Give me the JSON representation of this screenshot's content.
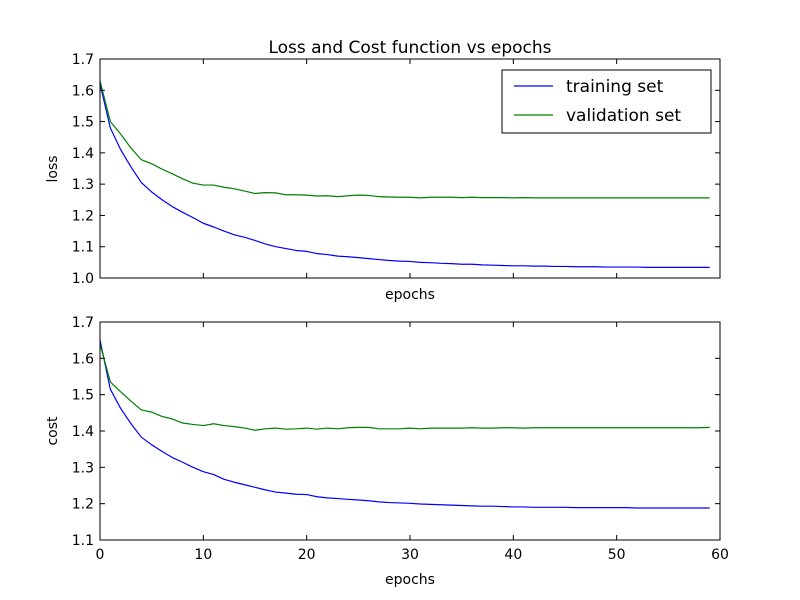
{
  "chart_data": [
    {
      "type": "line",
      "title": "Loss and Cost function vs epochs",
      "xlabel": "epochs",
      "ylabel": "loss",
      "xlim": [
        0,
        60
      ],
      "ylim": [
        1.0,
        1.7
      ],
      "yticks": [
        "1.0",
        "1.1",
        "1.2",
        "1.3",
        "1.4",
        "1.5",
        "1.6",
        "1.7"
      ],
      "xticks_labeled": false,
      "legend": {
        "position": "top-right"
      },
      "series": [
        {
          "name": "training set",
          "color": "#0000ff",
          "x": [
            0,
            1,
            2,
            3,
            4,
            5,
            6,
            7,
            8,
            9,
            10,
            11,
            12,
            13,
            14,
            15,
            16,
            17,
            18,
            19,
            20,
            21,
            22,
            23,
            24,
            25,
            26,
            27,
            28,
            29,
            30,
            31,
            32,
            33,
            34,
            35,
            36,
            37,
            38,
            39,
            40,
            41,
            42,
            43,
            44,
            45,
            46,
            47,
            48,
            49,
            50,
            51,
            52,
            53,
            54,
            55,
            56,
            57,
            58,
            59
          ],
          "values": [
            1.62,
            1.48,
            1.41,
            1.355,
            1.305,
            1.275,
            1.25,
            1.228,
            1.21,
            1.193,
            1.175,
            1.163,
            1.15,
            1.138,
            1.13,
            1.12,
            1.109,
            1.1,
            1.094,
            1.088,
            1.085,
            1.078,
            1.075,
            1.07,
            1.068,
            1.065,
            1.062,
            1.059,
            1.056,
            1.054,
            1.053,
            1.05,
            1.049,
            1.047,
            1.046,
            1.044,
            1.044,
            1.042,
            1.041,
            1.04,
            1.039,
            1.039,
            1.038,
            1.038,
            1.037,
            1.037,
            1.036,
            1.036,
            1.036,
            1.035,
            1.035,
            1.035,
            1.035,
            1.034,
            1.034,
            1.034,
            1.034,
            1.034,
            1.034,
            1.034
          ]
        },
        {
          "name": "validation set",
          "color": "#008000",
          "x": [
            0,
            1,
            2,
            3,
            4,
            5,
            6,
            7,
            8,
            9,
            10,
            11,
            12,
            13,
            14,
            15,
            16,
            17,
            18,
            19,
            20,
            21,
            22,
            23,
            24,
            25,
            26,
            27,
            28,
            29,
            30,
            31,
            32,
            33,
            34,
            35,
            36,
            37,
            38,
            39,
            40,
            41,
            42,
            43,
            44,
            45,
            46,
            47,
            48,
            49,
            50,
            51,
            52,
            53,
            54,
            55,
            56,
            57,
            58,
            59
          ],
          "values": [
            1.63,
            1.5,
            1.46,
            1.415,
            1.378,
            1.365,
            1.348,
            1.333,
            1.317,
            1.303,
            1.297,
            1.297,
            1.29,
            1.285,
            1.278,
            1.27,
            1.273,
            1.272,
            1.266,
            1.266,
            1.265,
            1.262,
            1.263,
            1.26,
            1.263,
            1.265,
            1.264,
            1.26,
            1.259,
            1.258,
            1.258,
            1.256,
            1.258,
            1.258,
            1.258,
            1.257,
            1.258,
            1.257,
            1.257,
            1.257,
            1.256,
            1.257,
            1.256,
            1.256,
            1.256,
            1.256,
            1.256,
            1.256,
            1.256,
            1.256,
            1.256,
            1.256,
            1.256,
            1.256,
            1.256,
            1.256,
            1.256,
            1.256,
            1.256,
            1.256
          ]
        }
      ]
    },
    {
      "type": "line",
      "title": "",
      "xlabel": "epochs",
      "ylabel": "cost",
      "xlim": [
        0,
        60
      ],
      "ylim": [
        1.1,
        1.7
      ],
      "yticks": [
        "1.1",
        "1.2",
        "1.3",
        "1.4",
        "1.5",
        "1.6",
        "1.7"
      ],
      "xticks": [
        "0",
        "10",
        "20",
        "30",
        "40",
        "50",
        "60"
      ],
      "xticks_labeled": true,
      "series": [
        {
          "name": "training set",
          "color": "#0000ff",
          "x": [
            0,
            1,
            2,
            3,
            4,
            5,
            6,
            7,
            8,
            9,
            10,
            11,
            12,
            13,
            14,
            15,
            16,
            17,
            18,
            19,
            20,
            21,
            22,
            23,
            24,
            25,
            26,
            27,
            28,
            29,
            30,
            31,
            32,
            33,
            34,
            35,
            36,
            37,
            38,
            39,
            40,
            41,
            42,
            43,
            44,
            45,
            46,
            47,
            48,
            49,
            50,
            51,
            52,
            53,
            54,
            55,
            56,
            57,
            58,
            59
          ],
          "values": [
            1.65,
            1.515,
            1.462,
            1.42,
            1.383,
            1.362,
            1.344,
            1.327,
            1.314,
            1.3,
            1.288,
            1.28,
            1.267,
            1.259,
            1.252,
            1.245,
            1.238,
            1.232,
            1.229,
            1.226,
            1.225,
            1.219,
            1.216,
            1.214,
            1.212,
            1.21,
            1.208,
            1.205,
            1.203,
            1.202,
            1.201,
            1.199,
            1.198,
            1.197,
            1.196,
            1.195,
            1.194,
            1.193,
            1.193,
            1.192,
            1.191,
            1.191,
            1.19,
            1.19,
            1.19,
            1.19,
            1.189,
            1.189,
            1.189,
            1.189,
            1.189,
            1.189,
            1.188,
            1.188,
            1.188,
            1.188,
            1.188,
            1.188,
            1.188,
            1.188
          ]
        },
        {
          "name": "validation set",
          "color": "#008000",
          "x": [
            0,
            1,
            2,
            3,
            4,
            5,
            6,
            7,
            8,
            9,
            10,
            11,
            12,
            13,
            14,
            15,
            16,
            17,
            18,
            19,
            20,
            21,
            22,
            23,
            24,
            25,
            26,
            27,
            28,
            29,
            30,
            31,
            32,
            33,
            34,
            35,
            36,
            37,
            38,
            39,
            40,
            41,
            42,
            43,
            44,
            45,
            46,
            47,
            48,
            49,
            50,
            51,
            52,
            53,
            54,
            55,
            56,
            57,
            58,
            59
          ],
          "values": [
            1.64,
            1.535,
            1.508,
            1.482,
            1.458,
            1.452,
            1.44,
            1.433,
            1.422,
            1.418,
            1.415,
            1.42,
            1.415,
            1.412,
            1.408,
            1.402,
            1.406,
            1.408,
            1.405,
            1.406,
            1.408,
            1.405,
            1.408,
            1.406,
            1.409,
            1.41,
            1.41,
            1.406,
            1.406,
            1.406,
            1.408,
            1.406,
            1.408,
            1.408,
            1.408,
            1.408,
            1.409,
            1.408,
            1.408,
            1.409,
            1.409,
            1.408,
            1.409,
            1.409,
            1.409,
            1.409,
            1.409,
            1.409,
            1.409,
            1.409,
            1.409,
            1.409,
            1.409,
            1.409,
            1.409,
            1.409,
            1.409,
            1.409,
            1.409,
            1.41
          ]
        }
      ]
    }
  ]
}
